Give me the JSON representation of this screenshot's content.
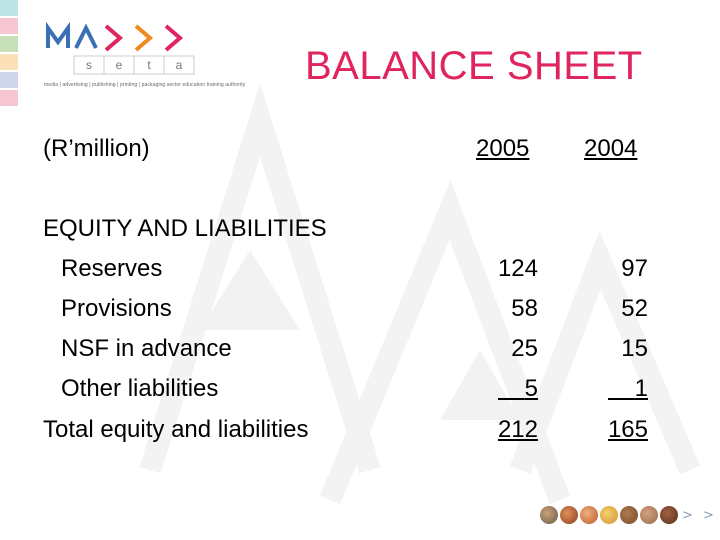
{
  "logo": {
    "wordmark": "MAPPP",
    "letters": [
      "s",
      "e",
      "t",
      "a"
    ],
    "tagline": "media | advertising | publishing | printing | packaging  sector education training authority",
    "colors": [
      "#3a6fb5",
      "#e0245e",
      "#f08a1c",
      "#c8c8c8"
    ]
  },
  "title": "BALANCE SHEET",
  "header": {
    "unit_label": "(R’million)",
    "years": [
      "2005",
      "2004"
    ]
  },
  "section_label": "EQUITY AND LIABILITIES",
  "rows": [
    {
      "label": "Reserves",
      "v2005": "124",
      "v2004": "97"
    },
    {
      "label": "Provisions",
      "v2005": "58",
      "v2004": "52"
    },
    {
      "label": "NSF in advance",
      "v2005": "25",
      "v2004": "15"
    },
    {
      "label": "Other liabilities",
      "v2005": "5",
      "v2004": "1"
    },
    {
      "label": "Total equity and liabilities",
      "v2005": "212",
      "v2004": "165"
    }
  ],
  "footer": {
    "next_glyph": "> >",
    "thumbnail_colors": [
      "#6b5a45",
      "#8a3f1d",
      "#b85a2a",
      "#d09030",
      "#7a4a2a",
      "#9a6a4a",
      "#5a3020"
    ]
  },
  "accent_color": "#e0245e"
}
